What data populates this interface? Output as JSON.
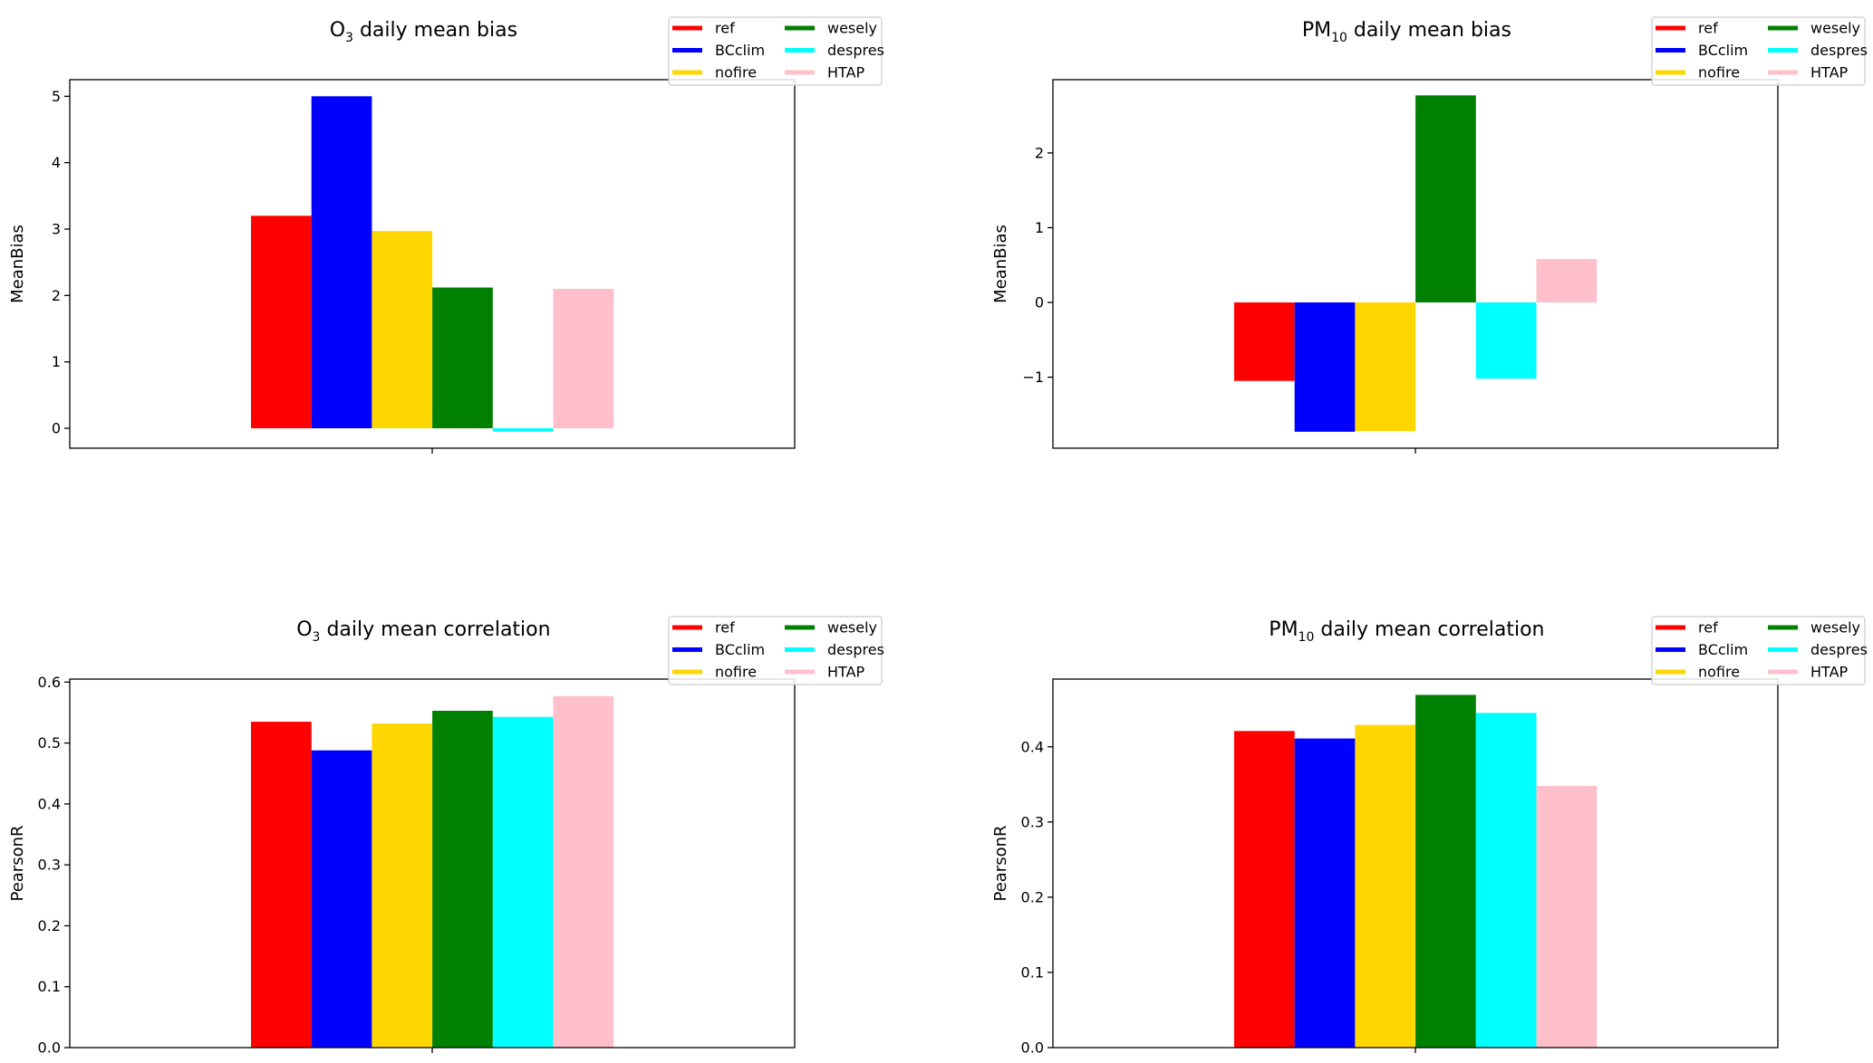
{
  "chart_data": [
    {
      "type": "bar",
      "title": "O₃ daily mean bias",
      "title_main": "O",
      "title_sub": "3",
      "title_rest": " daily mean bias",
      "ylabel": "MeanBias",
      "xlabel": "",
      "ylim": [
        -0.3,
        5.25
      ],
      "yticks": [
        0,
        1,
        2,
        3,
        4,
        5
      ],
      "ytick_labels": [
        "0",
        "1",
        "2",
        "3",
        "4",
        "5"
      ],
      "grid": false,
      "legend_position": "top-right",
      "series": [
        {
          "name": "ref",
          "values": [
            3.2
          ]
        },
        {
          "name": "BCclim",
          "values": [
            5.0
          ]
        },
        {
          "name": "nofire",
          "values": [
            2.97
          ]
        },
        {
          "name": "wesely",
          "values": [
            2.12
          ]
        },
        {
          "name": "despres",
          "values": [
            -0.05
          ]
        },
        {
          "name": "HTAP",
          "values": [
            2.1
          ]
        }
      ]
    },
    {
      "type": "bar",
      "title": "PM₁₀ daily mean bias",
      "title_main": "PM",
      "title_sub": "10",
      "title_rest": " daily mean bias",
      "ylabel": "MeanBias",
      "xlabel": "",
      "ylim": [
        -1.95,
        2.98
      ],
      "yticks": [
        -1,
        0,
        1,
        2
      ],
      "ytick_labels": [
        "−1",
        "0",
        "1",
        "2"
      ],
      "grid": false,
      "legend_position": "top-right",
      "series": [
        {
          "name": "ref",
          "values": [
            -1.05
          ]
        },
        {
          "name": "BCclim",
          "values": [
            -1.73
          ]
        },
        {
          "name": "nofire",
          "values": [
            -1.72
          ]
        },
        {
          "name": "wesely",
          "values": [
            2.77
          ]
        },
        {
          "name": "despres",
          "values": [
            -1.02
          ]
        },
        {
          "name": "HTAP",
          "values": [
            0.58
          ]
        }
      ]
    },
    {
      "type": "bar",
      "title": "O₃ daily mean correlation",
      "title_main": "O",
      "title_sub": "3",
      "title_rest": " daily mean correlation",
      "ylabel": "PearsonR",
      "xlabel": "",
      "ylim": [
        0,
        0.605
      ],
      "yticks": [
        0,
        0.1,
        0.2,
        0.3,
        0.4,
        0.5,
        0.6
      ],
      "ytick_labels": [
        "0.0",
        "0.1",
        "0.2",
        "0.3",
        "0.4",
        "0.5",
        "0.6"
      ],
      "grid": false,
      "legend_position": "top-right",
      "series": [
        {
          "name": "ref",
          "values": [
            0.535
          ]
        },
        {
          "name": "BCclim",
          "values": [
            0.488
          ]
        },
        {
          "name": "nofire",
          "values": [
            0.532
          ]
        },
        {
          "name": "wesely",
          "values": [
            0.553
          ]
        },
        {
          "name": "despres",
          "values": [
            0.543
          ]
        },
        {
          "name": "HTAP",
          "values": [
            0.577
          ]
        }
      ]
    },
    {
      "type": "bar",
      "title": "PM₁₀ daily mean correlation",
      "title_main": "PM",
      "title_sub": "10",
      "title_rest": " daily mean correlation",
      "ylabel": "PearsonR",
      "xlabel": "",
      "ylim": [
        0,
        0.49
      ],
      "yticks": [
        0,
        0.1,
        0.2,
        0.3,
        0.4
      ],
      "ytick_labels": [
        "0.0",
        "0.1",
        "0.2",
        "0.3",
        "0.4"
      ],
      "grid": false,
      "legend_position": "top-right",
      "series": [
        {
          "name": "ref",
          "values": [
            0.421
          ]
        },
        {
          "name": "BCclim",
          "values": [
            0.411
          ]
        },
        {
          "name": "nofire",
          "values": [
            0.429
          ]
        },
        {
          "name": "wesely",
          "values": [
            0.469
          ]
        },
        {
          "name": "despres",
          "values": [
            0.445
          ]
        },
        {
          "name": "HTAP",
          "values": [
            0.348
          ]
        }
      ]
    }
  ],
  "colors": {
    "ref": "#ff0000",
    "BCclim": "#0000ff",
    "nofire": "#ffd700",
    "wesely": "#008000",
    "despres": "#00ffff",
    "HTAP": "#ffc0cb"
  },
  "legend": {
    "items": [
      "ref",
      "BCclim",
      "nofire",
      "wesely",
      "despres",
      "HTAP"
    ]
  }
}
